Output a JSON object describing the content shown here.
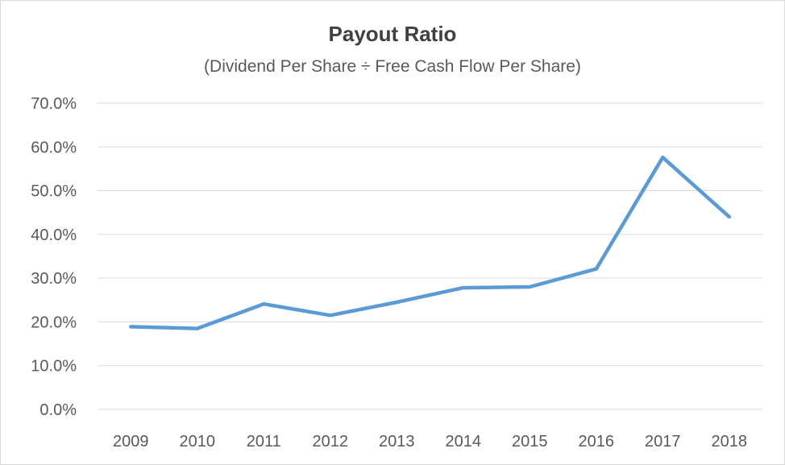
{
  "chart_data": {
    "type": "line",
    "title": "Payout Ratio",
    "subtitle": "(Dividend Per Share ÷ Free Cash Flow Per Share)",
    "xlabel": "",
    "ylabel": "",
    "categories": [
      "2009",
      "2010",
      "2011",
      "2012",
      "2013",
      "2014",
      "2015",
      "2016",
      "2017",
      "2018"
    ],
    "series": [
      {
        "values": [
          0.189,
          0.185,
          0.241,
          0.215,
          0.245,
          0.278,
          0.28,
          0.321,
          0.576,
          0.44
        ]
      }
    ],
    "ylim": [
      0,
      0.7
    ],
    "yticks": [
      0,
      0.1,
      0.2,
      0.3,
      0.4,
      0.5,
      0.6,
      0.7
    ],
    "ytick_labels": [
      "0.0%",
      "10.0%",
      "20.0%",
      "30.0%",
      "40.0%",
      "50.0%",
      "60.0%",
      "70.0%"
    ],
    "grid": true,
    "legend": "none",
    "line_color": "#5b9bd5",
    "grid_color": "#d9d9d9"
  }
}
